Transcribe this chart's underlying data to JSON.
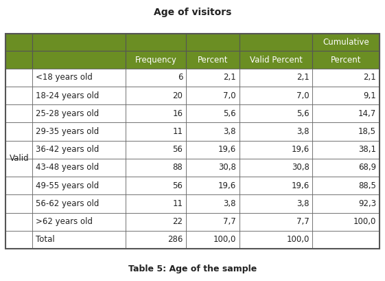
{
  "title": "Age of visitors",
  "caption": "Table 5: Age of the sample",
  "header_bg": "#6b8e23",
  "header_text_color": "#ffffff",
  "border_color": "#555555",
  "text_color": "#222222",
  "rows": [
    {
      "label": "<18 years old",
      "freq": "6",
      "pct": "2,1",
      "vpct": "2,1",
      "cpct": "2,1"
    },
    {
      "label": "18-24 years old",
      "freq": "20",
      "pct": "7,0",
      "vpct": "7,0",
      "cpct": "9,1"
    },
    {
      "label": "25-28 years old",
      "freq": "16",
      "pct": "5,6",
      "vpct": "5,6",
      "cpct": "14,7"
    },
    {
      "label": "29-35 years old",
      "freq": "11",
      "pct": "3,8",
      "vpct": "3,8",
      "cpct": "18,5"
    },
    {
      "label": "36-42 years old",
      "freq": "56",
      "pct": "19,6",
      "vpct": "19,6",
      "cpct": "38,1"
    },
    {
      "label": "43-48 years old",
      "freq": "88",
      "pct": "30,8",
      "vpct": "30,8",
      "cpct": "68,9"
    },
    {
      "label": "49-55 years old",
      "freq": "56",
      "pct": "19,6",
      "vpct": "19,6",
      "cpct": "88,5"
    },
    {
      "label": "56-62 years old",
      "freq": "11",
      "pct": "3,8",
      "vpct": "3,8",
      "cpct": "92,3"
    },
    {
      "label": ">62 years old",
      "freq": "22",
      "pct": "7,7",
      "vpct": "7,7",
      "cpct": "100,0"
    },
    {
      "label": "Total",
      "freq": "286",
      "pct": "100,0",
      "vpct": "100,0",
      "cpct": ""
    }
  ],
  "figsize": [
    5.61,
    4.09
  ],
  "dpi": 100
}
